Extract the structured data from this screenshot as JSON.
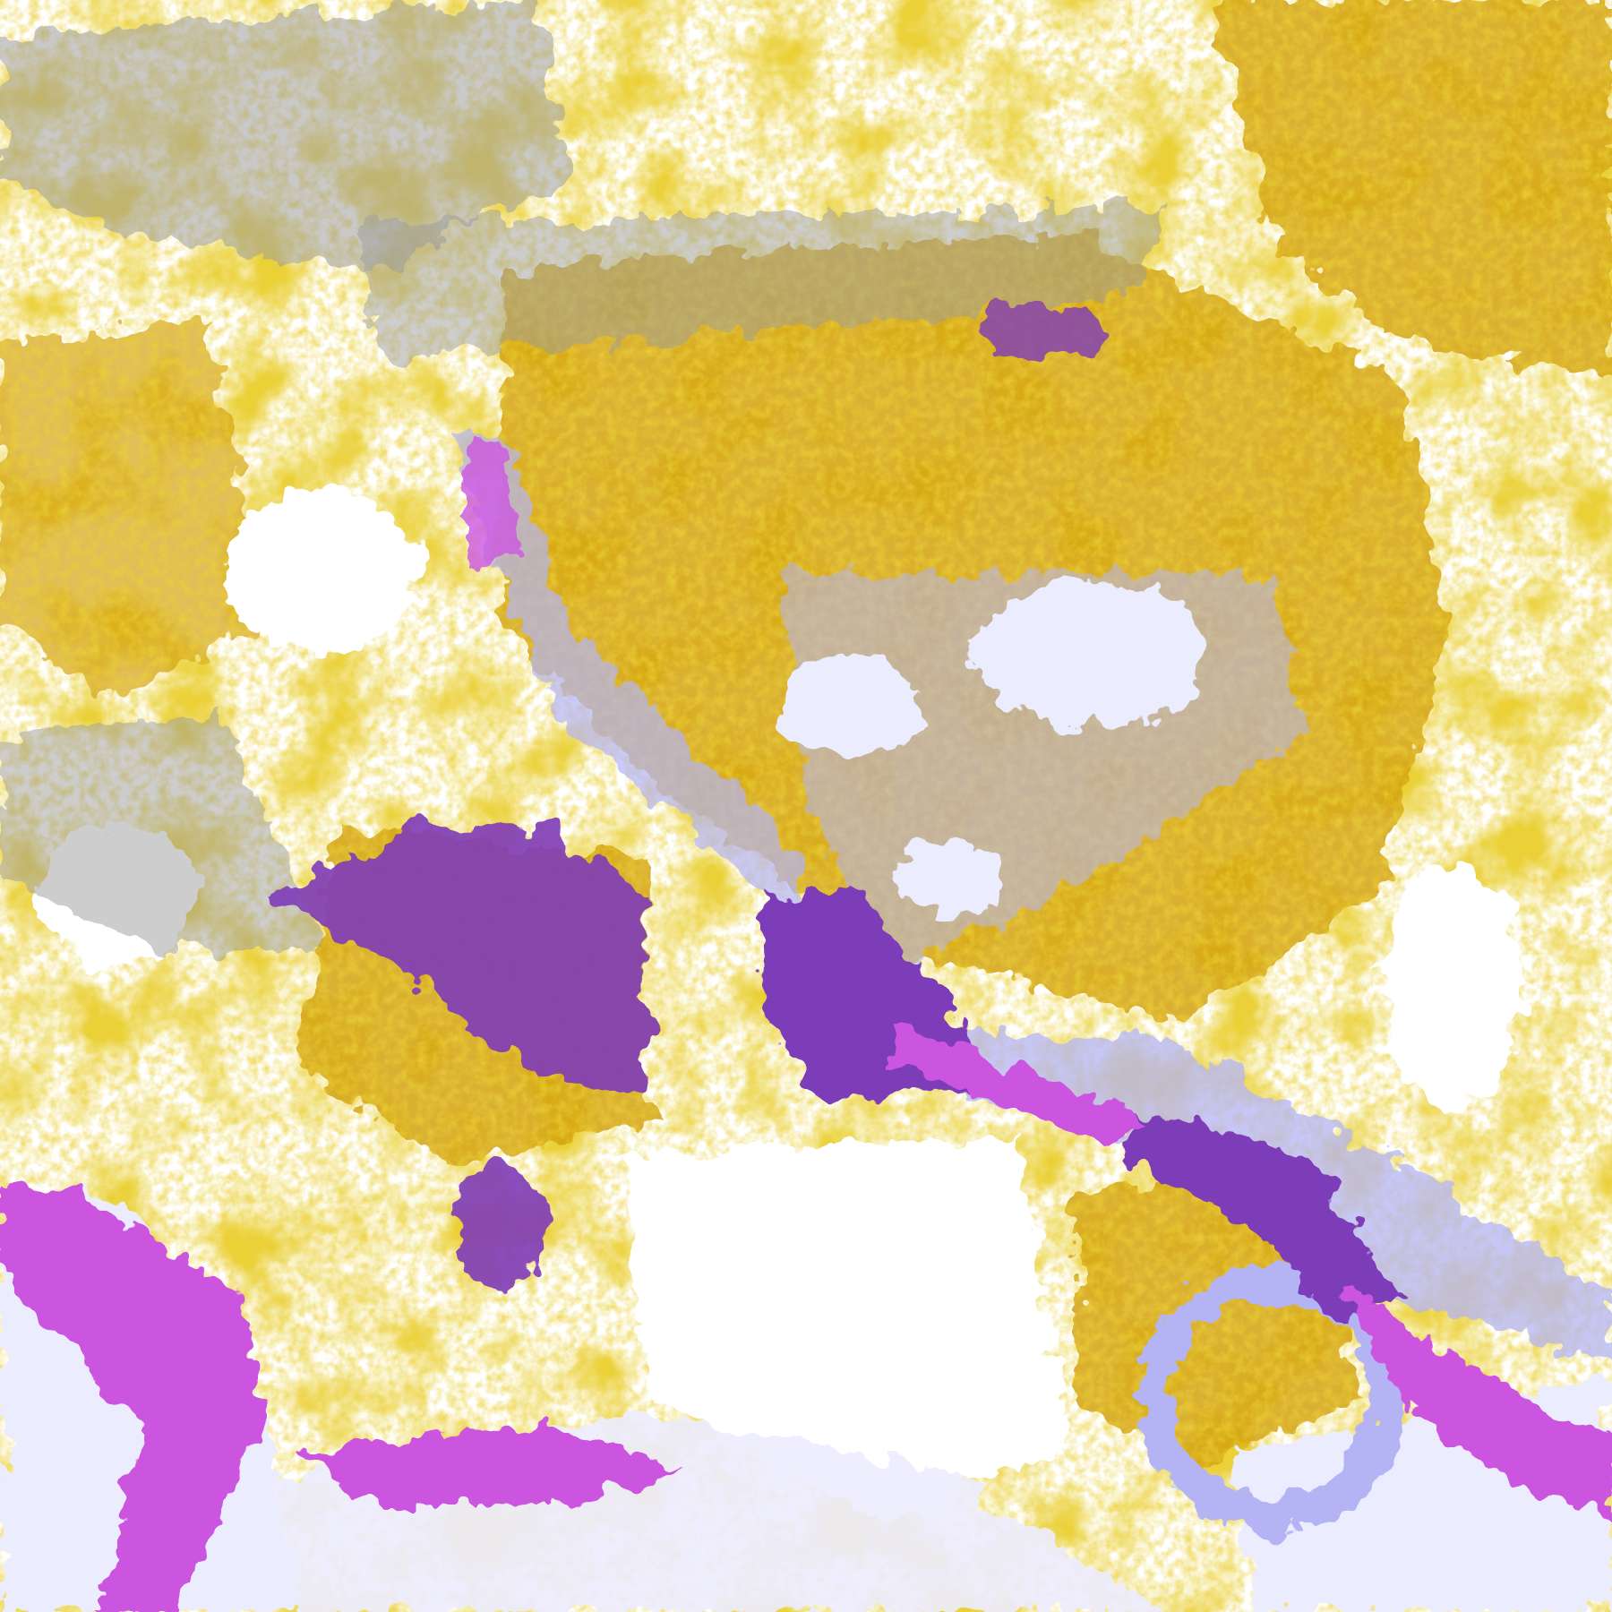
{
  "image": {
    "kind": "satellite cloud classification composite",
    "palette": {
      "background": "#ffffff",
      "low_cloud_gold": "#d4a20a",
      "deep_purple": "#7e3cb8",
      "magenta": "#cc55e0",
      "pale_lavender": "#ececff",
      "light_blue": "#b4b4f4",
      "grey": "#9c9c9c"
    },
    "palette_order": [
      "low_cloud_gold",
      "deep_purple",
      "magenta",
      "pale_lavender",
      "light_blue",
      "grey"
    ]
  }
}
